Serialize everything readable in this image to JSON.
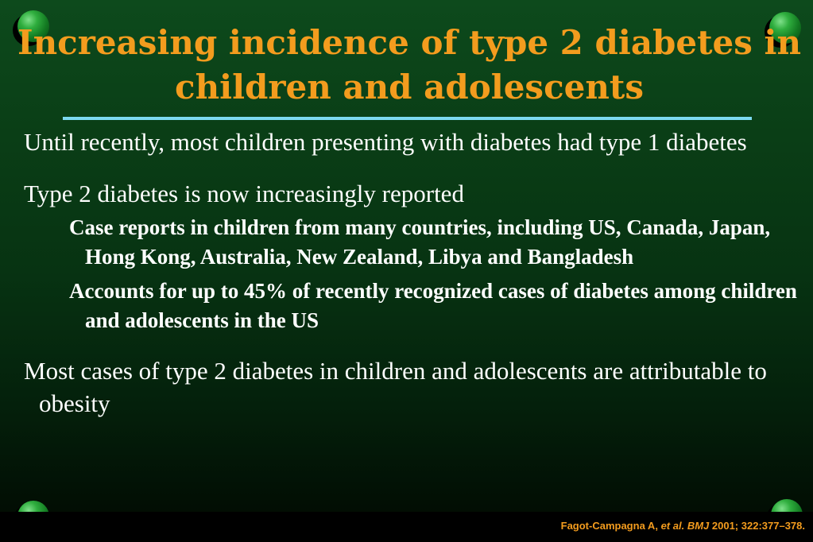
{
  "title": "Increasing incidence of type 2 diabetes in children and adolescents",
  "bullets": [
    {
      "text": "Until recently, most children presenting with diabetes had type 1 diabetes"
    },
    {
      "text": "Type 2 diabetes is now increasingly reported",
      "subbullets": [
        "Case reports in children from many countries, including US, Canada, Japan, Hong Kong, Australia, New Zealand, Libya and Bangladesh",
        "Accounts for up to 45% of recently recognized cases of diabetes among children and adolescents in the US"
      ]
    },
    {
      "text": "Most cases of type 2 diabetes in children and adolescents are attributable to obesity"
    }
  ],
  "citation": {
    "authors": "Fagot-Campagna A,",
    "etal": "et al.",
    "journal": "BMJ",
    "ref": "2001; 322:377–378."
  },
  "colors": {
    "title": "#f39c1e",
    "rule": "#7cd9f0",
    "body_text": "#ffffff",
    "background": "#0a3e16",
    "citation": "#f39c1e"
  },
  "decorations": {
    "corner_icon": "green-sphere-icon"
  }
}
